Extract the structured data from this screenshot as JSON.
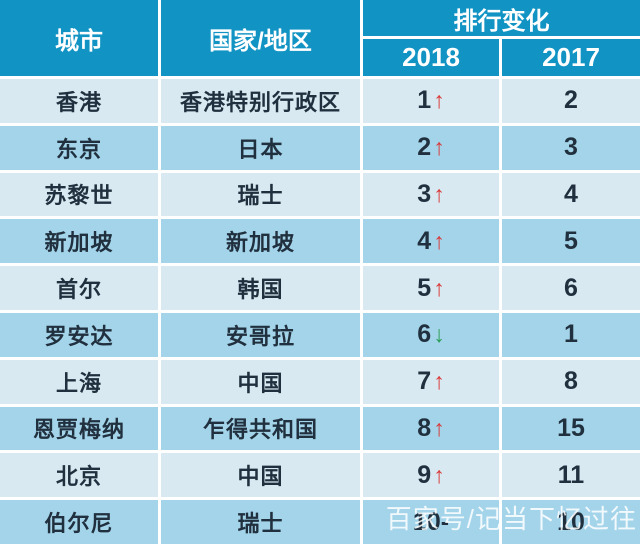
{
  "chart_data": {
    "type": "table",
    "header": {
      "city": "城市",
      "country": "国家/地区",
      "rank_change_group": "排行变化",
      "col_2018": "2018",
      "col_2017": "2017"
    },
    "rows": [
      {
        "city": "香港",
        "country": "香港特别行政区",
        "rank_2018": "1",
        "change": "up",
        "rank_2017": "2"
      },
      {
        "city": "东京",
        "country": "日本",
        "rank_2018": "2",
        "change": "up",
        "rank_2017": "3"
      },
      {
        "city": "苏黎世",
        "country": "瑞士",
        "rank_2018": "3",
        "change": "up",
        "rank_2017": "4"
      },
      {
        "city": "新加坡",
        "country": "新加坡",
        "rank_2018": "4",
        "change": "up",
        "rank_2017": "5"
      },
      {
        "city": "首尔",
        "country": "韩国",
        "rank_2018": "5",
        "change": "up",
        "rank_2017": "6"
      },
      {
        "city": "罗安达",
        "country": "安哥拉",
        "rank_2018": "6",
        "change": "down",
        "rank_2017": "1"
      },
      {
        "city": "上海",
        "country": "中国",
        "rank_2018": "7",
        "change": "up",
        "rank_2017": "8"
      },
      {
        "city": "恩贾梅纳",
        "country": "乍得共和国",
        "rank_2018": "8",
        "change": "up",
        "rank_2017": "15"
      },
      {
        "city": "北京",
        "country": "中国",
        "rank_2018": "9",
        "change": "up",
        "rank_2017": "11"
      },
      {
        "city": "伯尔尼",
        "country": "瑞士",
        "rank_2018": "10",
        "change": "none",
        "rank_2017": "10"
      }
    ]
  },
  "glyphs": {
    "up": "↑",
    "down": "↓",
    "none": "-"
  },
  "watermark": {
    "text": "百家号/记当下忆过往"
  },
  "colors": {
    "header_bg": "#1193c4",
    "header_text": "#ffffff",
    "row_light": "#d9e9f1",
    "row_dark": "#a3d4ea",
    "text_dark": "#21303e",
    "arrow_up": "#d93a3a",
    "arrow_down": "#2d9e55"
  }
}
